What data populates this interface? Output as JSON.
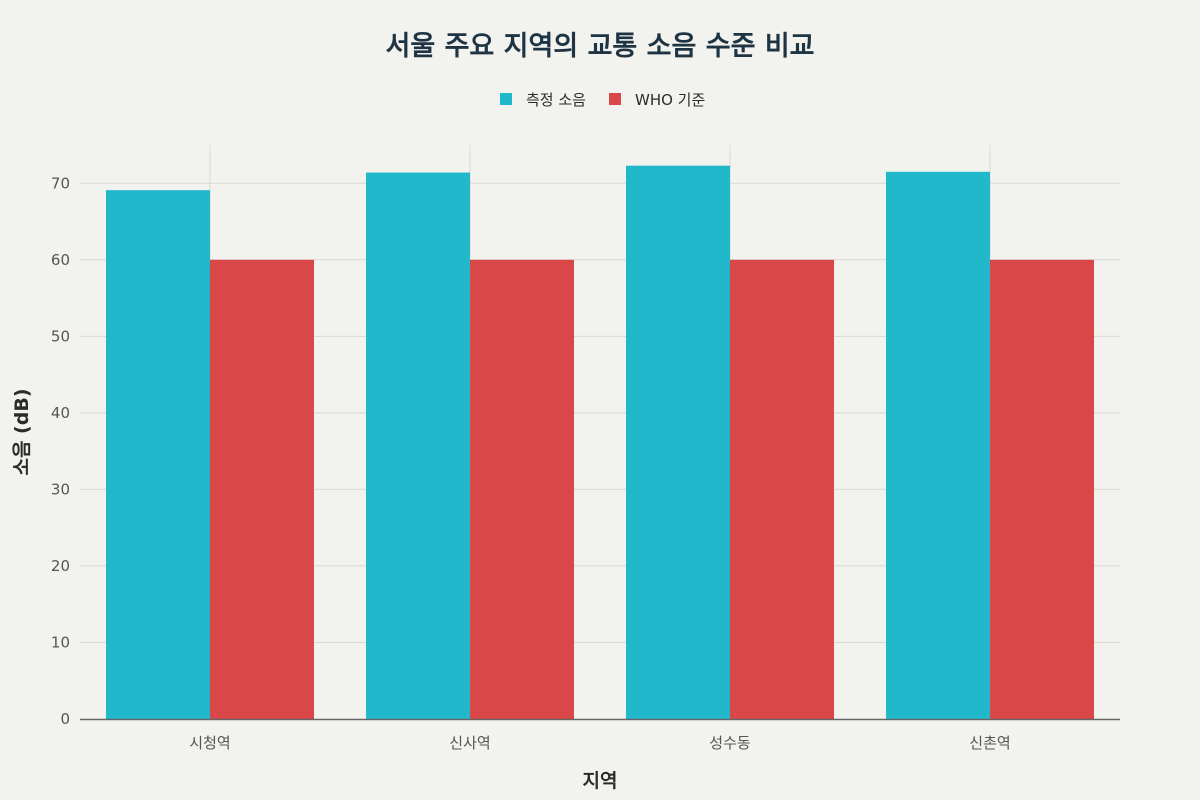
{
  "chart_data": {
    "type": "bar",
    "title": "서울 주요 지역의 교통 소음 수준 비교",
    "xlabel": "지역",
    "ylabel": "소음 (dB)",
    "categories": [
      "시청역",
      "신사역",
      "성수동",
      "신촌역"
    ],
    "series": [
      {
        "name": "측정 소음",
        "color": "#22b8cc",
        "values": [
          69.1,
          71.4,
          72.3,
          71.5
        ]
      },
      {
        "name": "WHO 기준",
        "color": "#da4748",
        "values": [
          60,
          60,
          60,
          60
        ]
      }
    ],
    "ylim": [
      0,
      75
    ],
    "yticks": [
      0,
      10,
      20,
      30,
      40,
      50,
      60,
      70
    ],
    "grid": true,
    "legend": "top-center"
  }
}
